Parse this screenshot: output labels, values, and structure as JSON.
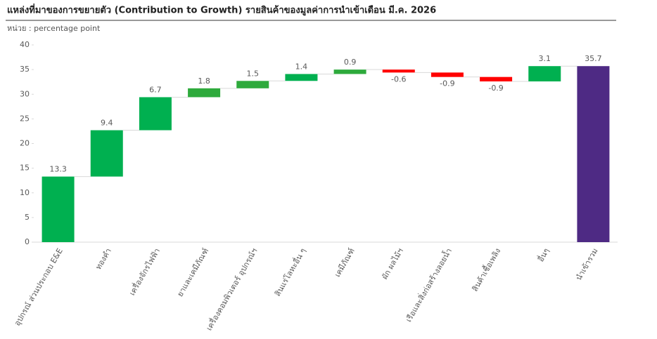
{
  "chart_data": {
    "type": "waterfall",
    "title": "แหล่งที่มาของการขยายตัว (Contribution to Growth) รายสินค้าของมูลค่าการนำเข้าเดือน มี.ค. 2026",
    "subtitle": "หน่วย : percentage point",
    "categories": [
      "อุปกรณ์ ส่วนประกอบ E&E",
      "ทองคำ",
      "เครื่องจักรไฟฟ้า",
      "ยาและเคมีภัณฑ์",
      "เครื่องคอมพิวเตอร์ อุปกรณ์ฯ",
      "สินแร่โลหะอื่น ๆ",
      "เคมีภัณฑ์",
      "ผัก ผลไม้ฯ",
      "เรือและสิ่งก่อสร้างลอยน้ำ",
      "สินค้าเชื้อเพลิง",
      "อื่นๆ",
      "นำเข้ารวม"
    ],
    "values": [
      13.3,
      9.4,
      6.7,
      1.8,
      1.5,
      1.4,
      0.9,
      -0.6,
      -0.9,
      -0.9,
      3.1,
      35.7
    ],
    "is_total": [
      false,
      false,
      false,
      false,
      false,
      false,
      false,
      false,
      false,
      false,
      false,
      true
    ],
    "colors": [
      "#00b050",
      "#00b050",
      "#00b050",
      "#2eaa3c",
      "#2eaa3c",
      "#00b050",
      "#2eaa3c",
      "#ff0000",
      "#ff0000",
      "#ff0000",
      "#00b050",
      "#4e2a84"
    ],
    "ylim": [
      0,
      40
    ],
    "yticks": [
      0,
      5,
      10,
      15,
      20,
      25,
      30,
      35,
      40
    ]
  }
}
